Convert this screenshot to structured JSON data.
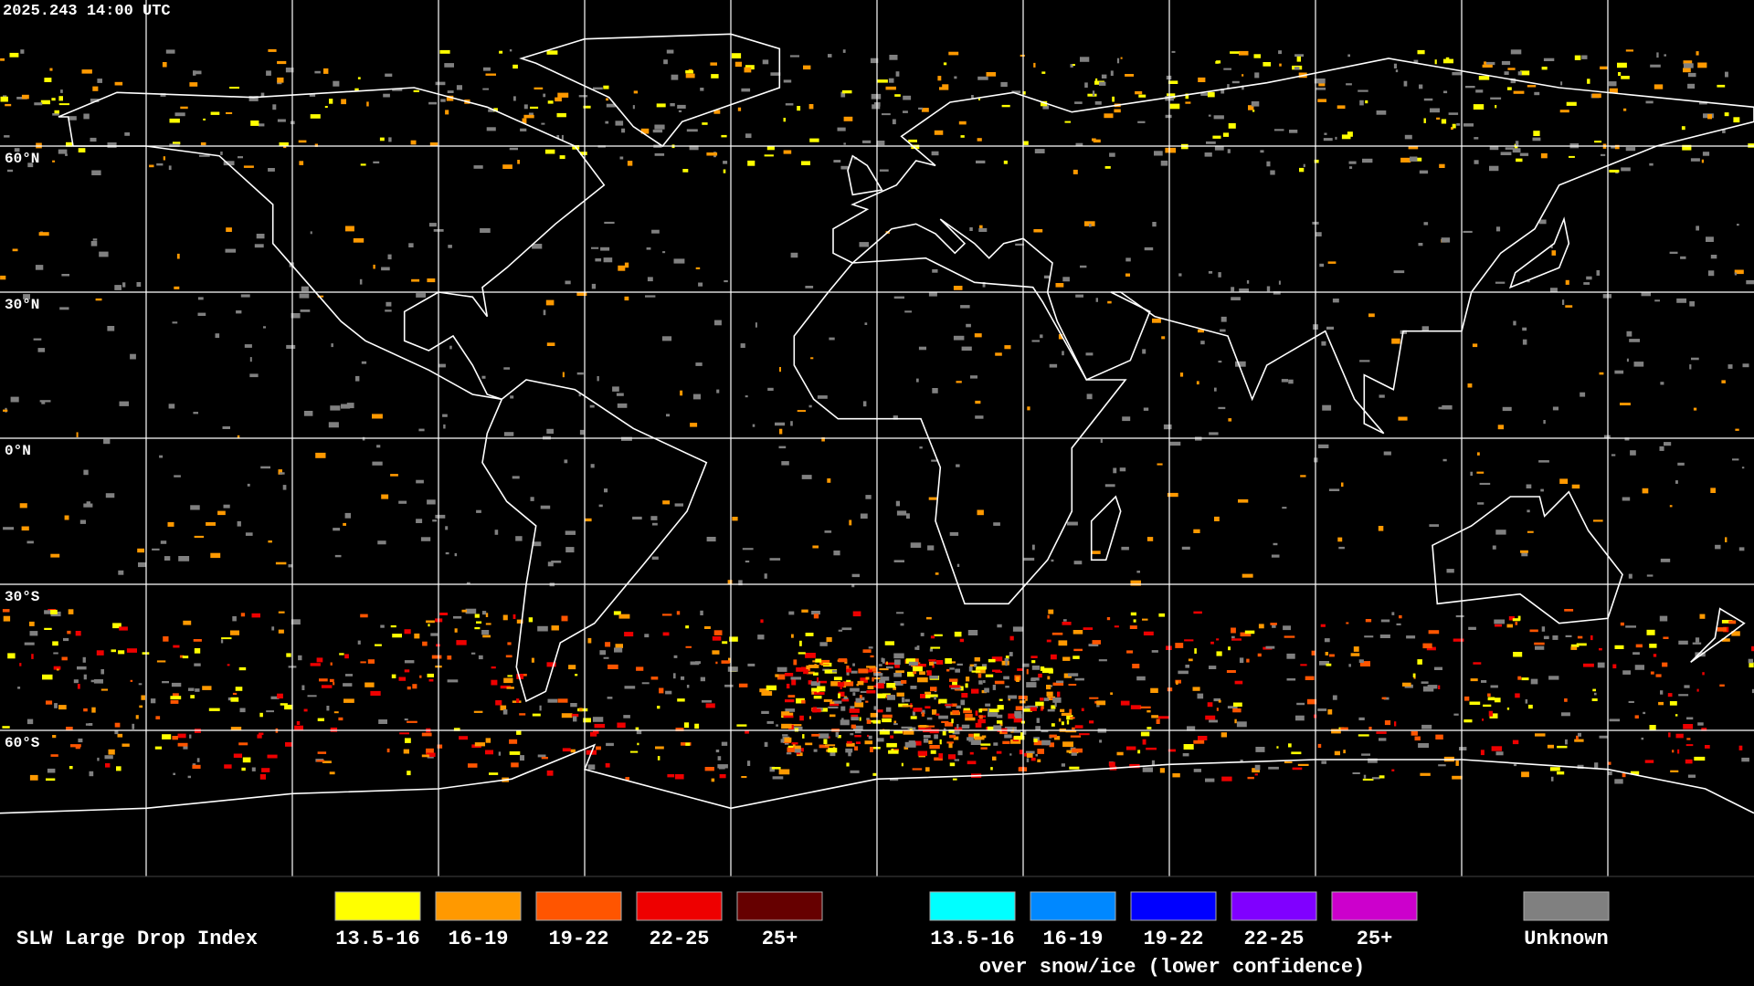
{
  "header": {
    "timestamp": "2025.243 14:00 UTC"
  },
  "map": {
    "lat_labels": [
      "60°N",
      "30°N",
      "0°N",
      "30°S",
      "60°S"
    ]
  },
  "legend": {
    "title": "SLW Large Drop Index",
    "groups": [
      {
        "items": [
          {
            "label": "13.5-16",
            "color": "#ffff00"
          },
          {
            "label": "16-19",
            "color": "#ff9900"
          },
          {
            "label": "19-22",
            "color": "#ff5500"
          },
          {
            "label": "22-25",
            "color": "#ee0000"
          },
          {
            "label": "25+",
            "color": "#660000"
          }
        ]
      },
      {
        "items": [
          {
            "label": "13.5-16",
            "color": "#00ffff"
          },
          {
            "label": "16-19",
            "color": "#0088ff"
          },
          {
            "label": "19-22",
            "color": "#0000ff"
          },
          {
            "label": "22-25",
            "color": "#8000ff"
          },
          {
            "label": "25+",
            "color": "#cc00cc"
          }
        ],
        "caption": "over snow/ice (lower confidence)"
      },
      {
        "items": [
          {
            "label": "Unknown",
            "color": "#808080"
          }
        ]
      }
    ]
  }
}
